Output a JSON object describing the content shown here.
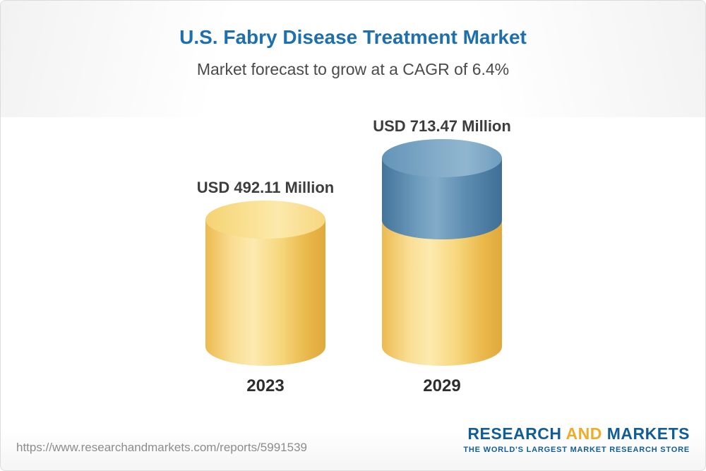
{
  "header": {
    "title": "U.S. Fabry Disease Treatment Market",
    "subtitle": "Market forecast to grow at a CAGR of 6.4%"
  },
  "chart_data": {
    "type": "bar",
    "title": "U.S. Fabry Disease Treatment Market",
    "subtitle": "Market forecast to grow at a CAGR of 6.4%",
    "cagr_percent": 6.4,
    "categories": [
      "2023",
      "2029"
    ],
    "values": [
      492.11,
      713.47
    ],
    "value_labels": [
      "USD 492.11 Million",
      "USD 713.47 Million"
    ],
    "unit": "USD Million",
    "xlabel": "",
    "ylabel": "",
    "legend": "none",
    "grid": false,
    "style_notes": {
      "bar_style": "3d-cylinder",
      "base_color": "#f1c45f",
      "growth_segment_color": "#5b8cb1",
      "growth_note": "2029 bar shows the increment above the 2023 value as a blue segment on top of the yellow base"
    }
  },
  "footer": {
    "url": "https://www.researchandmarkets.com/reports/5991539",
    "logo": {
      "research": "RESEARCH",
      "and": "AND",
      "markets": "MARKETS",
      "tagline": "THE WORLD'S LARGEST MARKET RESEARCH STORE"
    }
  }
}
